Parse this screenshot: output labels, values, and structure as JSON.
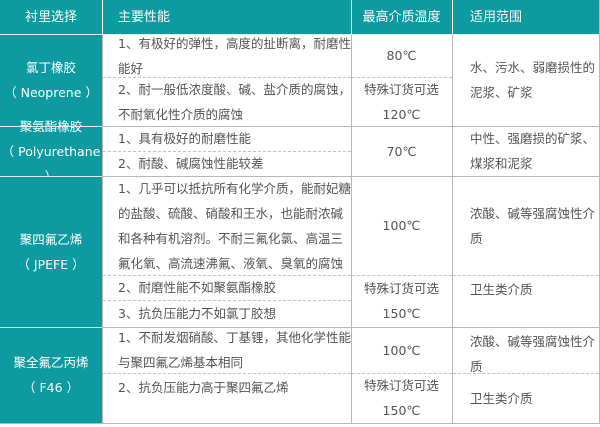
{
  "header": [
    "衬里选择",
    "主要性能",
    "最高介质温度",
    "适用范围"
  ],
  "rows": [
    {
      "lining": [
        "氯丁橡胶",
        "（ Neoprene ）"
      ],
      "properties": [
        [
          "1、有极好的弹性，高度的扯断离，耐磨性",
          "能好"
        ],
        [
          "2、耐一般低浓度酸、碱、盐介质的腐蚀，",
          "不耐氧化性介质的腐蚀"
        ]
      ],
      "temperature": [
        [
          "80℃"
        ],
        [
          "特殊订货可选",
          "120℃"
        ]
      ],
      "application": [
        [
          "水、污水、弱磨损性的",
          "泥浆、矿浆"
        ]
      ]
    },
    {
      "lining": [
        "聚氨酯橡胶",
        "（ Polyurethane ）"
      ],
      "properties": [
        [
          "1、具有极好的耐磨性能"
        ],
        [
          "2、耐酸、碱腐蚀性能较差"
        ]
      ],
      "temperature": [
        [
          "70℃"
        ]
      ],
      "application": [
        [
          "中性、强磨损的矿浆、",
          "煤浆和泥浆"
        ]
      ]
    },
    {
      "lining": [
        "聚四氟乙烯",
        "（ JPEFE ）"
      ],
      "properties": [
        [
          "1、几乎可以抵抗所有化学介质，能耐妃糖",
          "的盐酸、硫酸、硝酸和王水，也能耐浓碱",
          "和各种有机溶剂。不耐三氟化氯、高温三",
          "氟化氧、高流速沸氟、液氧、臭氧的腐蚀"
        ],
        [
          "2、耐磨性能不如聚氨酯橡胶"
        ],
        [
          "3、抗负压能力不如氯丁胶想"
        ]
      ],
      "temperature": [
        [
          "100℃"
        ],
        [
          "特殊订货可选",
          "150℃"
        ]
      ],
      "application": [
        [
          "浓酸、碱等强腐蚀性介",
          "质"
        ],
        [
          "卫生类介质"
        ]
      ]
    },
    {
      "lining": [
        "聚全氟乙丙烯",
        "（ F46 ）"
      ],
      "properties": [
        [
          "1、不耐发烟硝酸、丁基锂，其他化学性能",
          "与聚四氟乙烯基本相同"
        ],
        [
          "2、抗负压能力高于聚四氟乙烯"
        ]
      ],
      "temperature": [
        [
          "100℃"
        ],
        [
          "特殊订货可选",
          "150℃"
        ]
      ],
      "application": [
        [
          "浓酸、碱等强腐蚀性介",
          "质"
        ],
        [
          "卫生类介质"
        ]
      ]
    }
  ],
  "colors": {
    "accent": "#0e9aa1",
    "text": "#555555",
    "border": "#b8b8b8"
  }
}
